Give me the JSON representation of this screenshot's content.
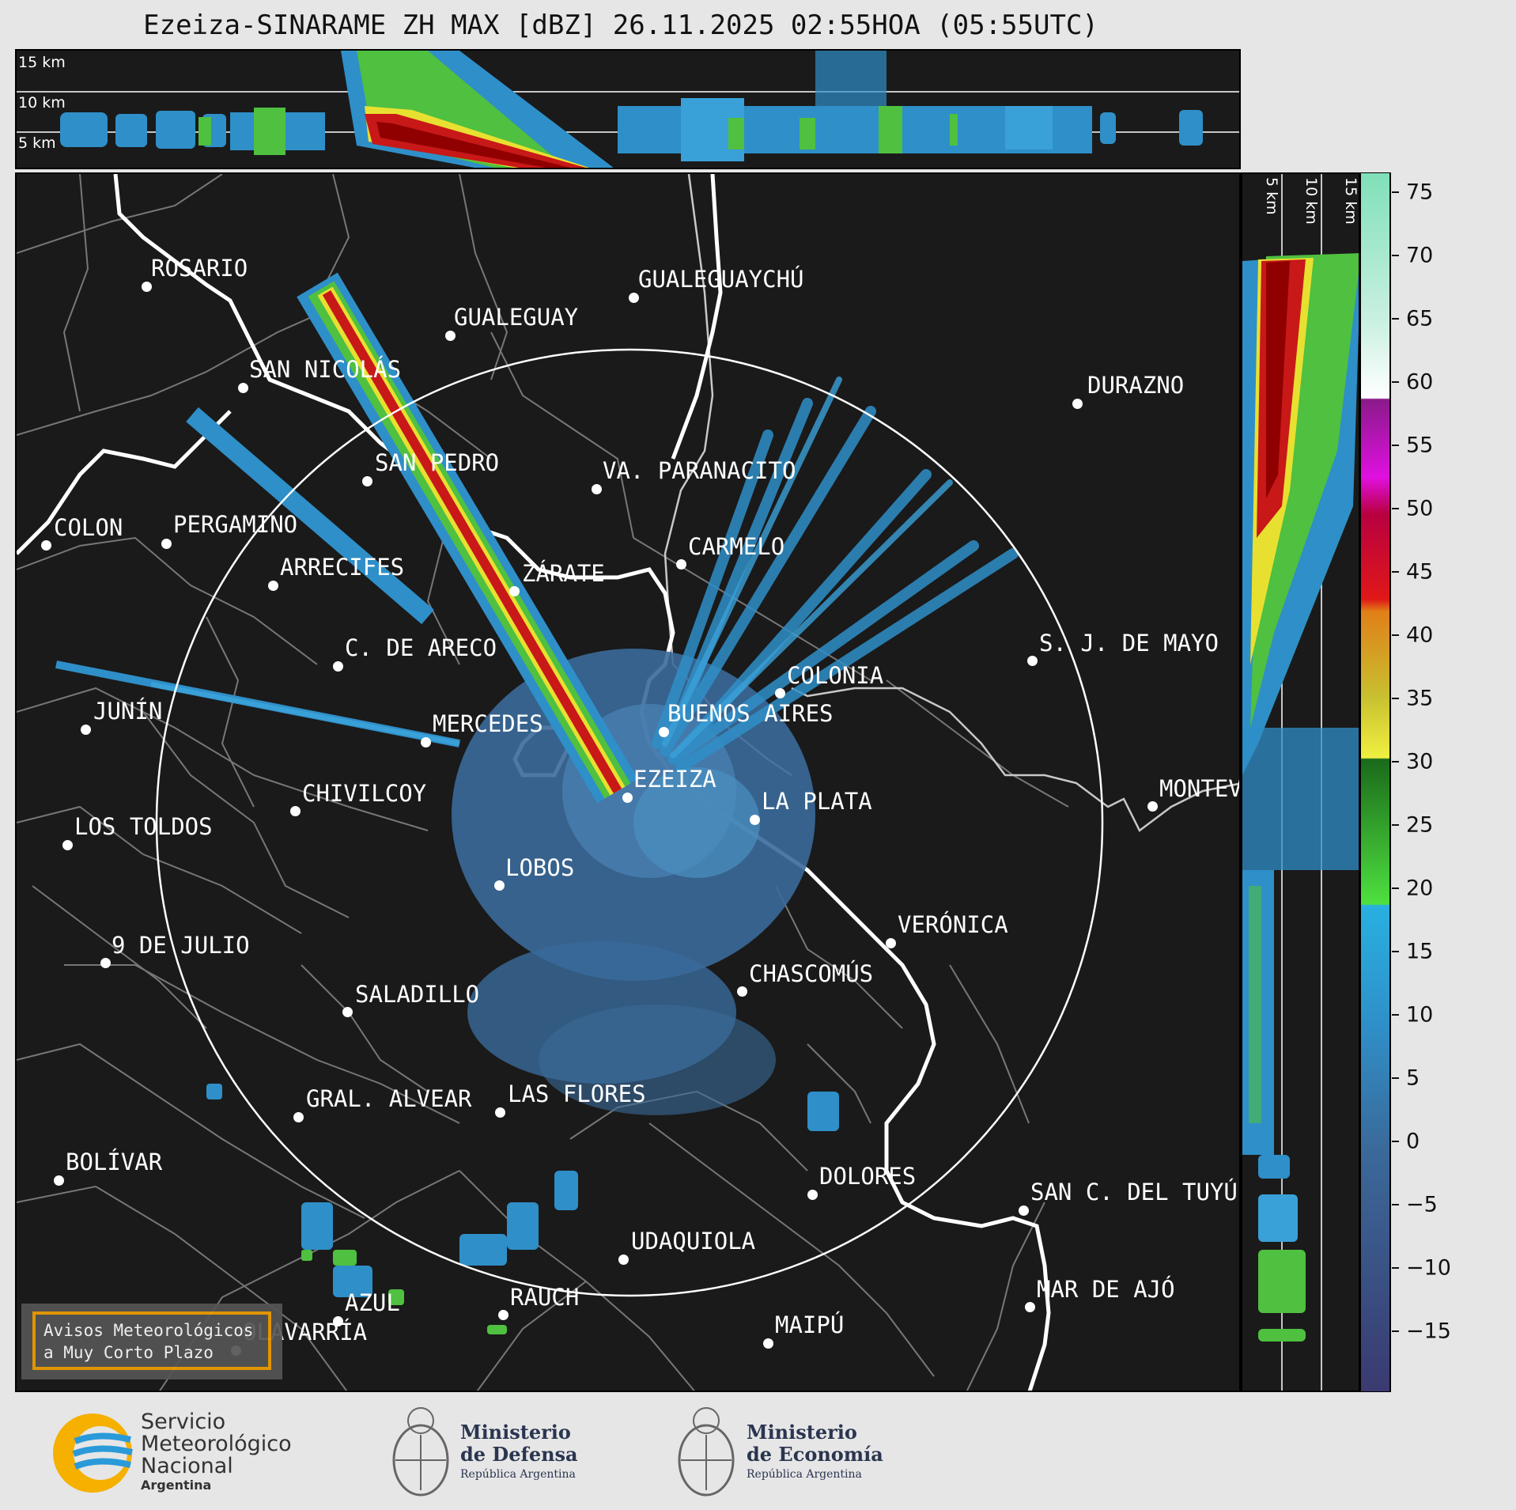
{
  "title": "Ezeiza-SINARAME ZH MAX [dBZ] 26.11.2025 02:55HOA (05:55UTC)",
  "top_panel": {
    "altitudes": [
      "15 km",
      "10 km",
      "5 km"
    ]
  },
  "side_panel": {
    "altitudes": [
      "5 km",
      "10 km",
      "15 km"
    ]
  },
  "colorbar": {
    "ticks": [
      "75",
      "70",
      "65",
      "60",
      "55",
      "50",
      "45",
      "40",
      "35",
      "30",
      "25",
      "20",
      "15",
      "10",
      "5",
      "0",
      "−5",
      "−10",
      "−15"
    ]
  },
  "cities": [
    {
      "name": "ROSARIO"
    },
    {
      "name": "GUALEGUAYCHÚ"
    },
    {
      "name": "GUALEGUAY"
    },
    {
      "name": "SAN NICOLÁS"
    },
    {
      "name": "DURAZNO"
    },
    {
      "name": "SAN PEDRO"
    },
    {
      "name": "VA. PARANACITO"
    },
    {
      "name": "COLON"
    },
    {
      "name": "PERGAMINO"
    },
    {
      "name": "CARMELO"
    },
    {
      "name": "ARRECIFES"
    },
    {
      "name": "ZÁRATE"
    },
    {
      "name": "S. J. DE MAYO"
    },
    {
      "name": "C. DE ARECO"
    },
    {
      "name": "COLONIA"
    },
    {
      "name": "JUNÍN"
    },
    {
      "name": "BUENOS AIRES"
    },
    {
      "name": "MERCEDES"
    },
    {
      "name": "MONTEV"
    },
    {
      "name": "EZEIZA"
    },
    {
      "name": "CHIVILCOY"
    },
    {
      "name": "LA PLATA"
    },
    {
      "name": "LOS TOLDOS"
    },
    {
      "name": "LOBOS"
    },
    {
      "name": "VERÓNICA"
    },
    {
      "name": "9 DE JULIO"
    },
    {
      "name": "CHASCOMÚS"
    },
    {
      "name": "SALADILLO"
    },
    {
      "name": "GRAL. ALVEAR"
    },
    {
      "name": "LAS FLORES"
    },
    {
      "name": "BOLÍVAR"
    },
    {
      "name": "DOLORES"
    },
    {
      "name": "SAN C. DEL TUYÚ"
    },
    {
      "name": "UDAQUIOLA"
    },
    {
      "name": "MAR DE AJÓ"
    },
    {
      "name": "RAUCH"
    },
    {
      "name": "AZUL"
    },
    {
      "name": "MAIPÚ"
    },
    {
      "name": "OLAVARRÍA"
    }
  ],
  "avisos": {
    "line1": "Avisos Meteorológicos",
    "line2": "a Muy Corto Plazo"
  },
  "logos": {
    "smn": {
      "line1": "Servicio",
      "line2": "Meteorológico",
      "line3": "Nacional",
      "line4": "Argentina"
    },
    "defensa": {
      "line1": "Ministerio",
      "line2": "de Defensa",
      "line3": "República Argentina"
    },
    "economia": {
      "line1": "Ministerio",
      "line2": "de Economía",
      "line3": "República Argentina"
    }
  }
}
